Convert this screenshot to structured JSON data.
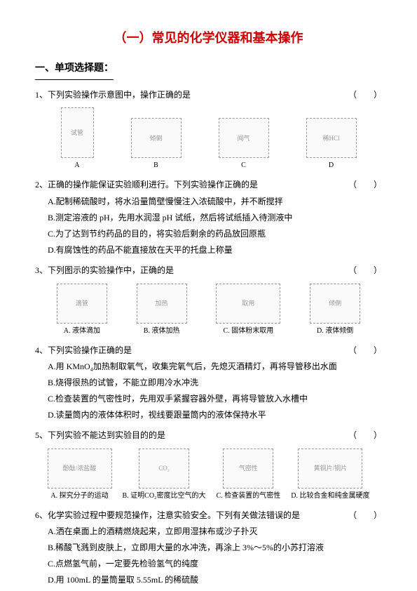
{
  "title": "（一）常见的化学仪器和基本操作",
  "section_header": "一、单项选择题：",
  "questions": [
    {
      "num": "1",
      "stem": "下列实验操作示意图中，操作正确的是",
      "paren": "（　　）",
      "images": [
        {
          "label": "A",
          "alt": "试管"
        },
        {
          "label": "B",
          "alt": "倾倒"
        },
        {
          "label": "C",
          "alt": "闻气"
        },
        {
          "label": "D",
          "alt": "稀HCl"
        }
      ]
    },
    {
      "num": "2",
      "stem": "正确的操作能保证实验顺利进行。下列实验操作正确的是",
      "paren": "（　　）",
      "options": [
        "A.配制稀硫酸时，将水沿量筒壁慢慢注入浓硫酸中，并不断搅拌",
        "B.测定溶液的 pH，先用水润湿 pH 试纸，然后将试纸插入待测液中",
        "C.为了达到节约药品的目的，将实验后剩余的药品放回原瓶",
        "D.有腐蚀性的药品不能直接放在天平的托盘上称量"
      ]
    },
    {
      "num": "3",
      "stem": "下列图示的实验操作中，正确的是",
      "paren": "（　　）",
      "images": [
        {
          "label": "A. 液体滴加",
          "alt": "滴管"
        },
        {
          "label": "B. 液体加热",
          "alt": "加热"
        },
        {
          "label": "C. 固体粉末取用",
          "alt": "取用"
        },
        {
          "label": "D. 液体倾倒",
          "alt": "倾倒"
        }
      ]
    },
    {
      "num": "4",
      "stem": "下列实验操作正确的是",
      "paren": "（　　）",
      "options": [
        "A.用 KMnO₄加热制取氧气，收集完氧气后，先熄灭酒精灯，再将导管移出水面",
        "B.烧得很热的试管，不能立即用冷水冲洗",
        "C.检查装置的气密性时，先用双手紧握容器外壁，再将导管放入水槽中",
        "D.读量筒内的液体体积时，视线要跟量筒内的液体保持水平"
      ]
    },
    {
      "num": "5",
      "stem": "下列实验不能达到实验目的的是",
      "paren": "（　　）",
      "images": [
        {
          "label": "A. 探究分子的运动",
          "alt": "酚酞/浓盐酸"
        },
        {
          "label": "B. 证明CO₂密度比空气的大",
          "alt": "CO₂"
        },
        {
          "label": "C. 检查装置的气密性",
          "alt": "气密性"
        },
        {
          "label": "D. 比较合金和纯金属硬度",
          "alt": "黄铜片/铜片"
        }
      ]
    },
    {
      "num": "6",
      "stem": "化学实验过程中要规范操作，注意实验安全。下列有关做法错误的是",
      "paren": "（　　）",
      "options": [
        "A.洒在桌面上的酒精燃烧起来，立即用湿抹布或沙子扑灭",
        "B.稀酸飞溅到皮肤上，立即用大量的水冲洗，再涂上 3%～5%的小苏打溶液",
        "C.点燃氢气前，一定要先检验氢气的纯度",
        "D.用 100mL 的量筒量取 5.55mL 的稀硫酸"
      ]
    }
  ]
}
